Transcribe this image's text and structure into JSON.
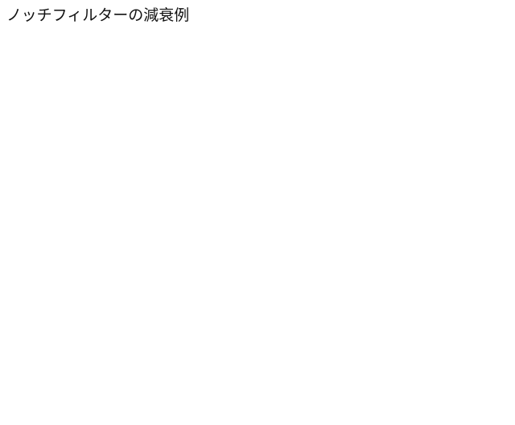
{
  "title": "ノッチフィルターの減衰例"
}
